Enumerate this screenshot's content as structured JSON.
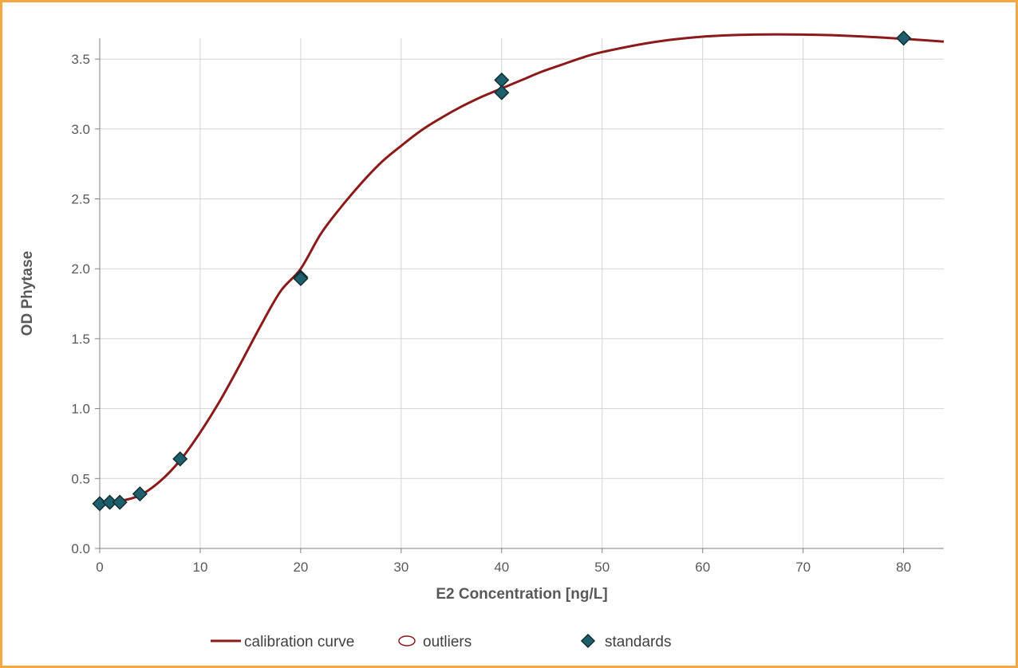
{
  "chart_data": {
    "type": "scatter",
    "xlabel": "E2 Concentration [ng/L]",
    "ylabel": "OD Phytase",
    "xlim": [
      0,
      84
    ],
    "ylim": [
      0,
      3.78
    ],
    "xticks": [
      "0",
      "10",
      "20",
      "30",
      "40",
      "50",
      "60",
      "70",
      "80"
    ],
    "yticks": [
      "0.0",
      "0.5",
      "1.0",
      "1.5",
      "2.0",
      "2.5",
      "3.0",
      "3.5"
    ],
    "grid": true,
    "legend_position": "bottom",
    "legend": [
      {
        "label": "calibration curve",
        "symbol": "line",
        "color": "#8b1a1a"
      },
      {
        "label": "outliers",
        "symbol": "open-ellipse",
        "color": "#8b1a1a"
      },
      {
        "label": "standards",
        "symbol": "diamond",
        "color": "#1f5f6b"
      }
    ],
    "series": [
      {
        "name": "calibration curve",
        "kind": "line",
        "color": "#8b1a1a",
        "x": [
          0,
          2,
          4,
          6,
          8,
          10,
          12,
          14,
          16,
          18,
          20,
          22,
          24,
          26,
          28,
          30,
          32,
          34,
          36,
          38,
          40,
          42,
          44,
          46,
          48,
          50,
          55,
          60,
          65,
          70,
          75,
          80,
          84
        ],
        "y": [
          0.33,
          0.34,
          0.38,
          0.48,
          0.63,
          0.83,
          1.06,
          1.32,
          1.59,
          1.84,
          2.0,
          2.25,
          2.44,
          2.61,
          2.76,
          2.88,
          2.99,
          3.08,
          3.16,
          3.23,
          3.29,
          3.35,
          3.41,
          3.46,
          3.51,
          3.55,
          3.62,
          3.66,
          3.675,
          3.675,
          3.665,
          3.645,
          3.625
        ]
      },
      {
        "name": "standards",
        "kind": "scatter",
        "color": "#1f5f6b",
        "x": [
          0,
          1,
          2,
          4,
          8,
          20,
          20,
          40,
          40,
          80
        ],
        "y": [
          0.32,
          0.33,
          0.33,
          0.39,
          0.64,
          1.94,
          1.93,
          3.35,
          3.26,
          3.65
        ]
      },
      {
        "name": "outliers",
        "kind": "scatter",
        "color": "#8b1a1a",
        "x": [],
        "y": []
      }
    ]
  }
}
